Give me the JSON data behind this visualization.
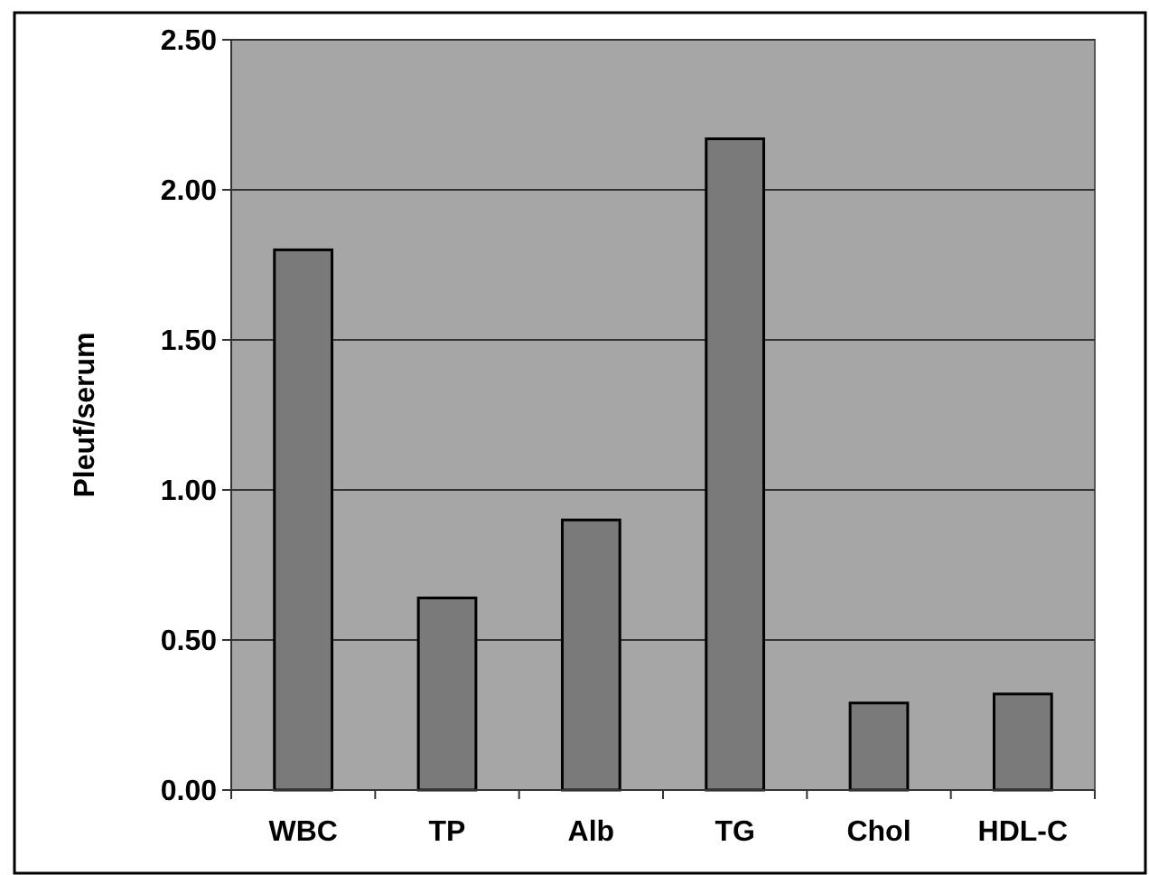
{
  "chart_data": {
    "type": "bar",
    "ylabel": "Pleuf/serum",
    "categories": [
      "WBC",
      "TP",
      "Alb",
      "TG",
      "Chol",
      "HDL-C"
    ],
    "values": [
      1.8,
      0.64,
      0.9,
      2.17,
      0.29,
      0.32
    ],
    "color": "#7a7a7a",
    "ylim": [
      0,
      2.5
    ],
    "yticks": [
      {
        "value": 0,
        "label": "0.00"
      },
      {
        "value": 0.5,
        "label": "0.50"
      },
      {
        "value": 1,
        "label": "1.00"
      },
      {
        "value": 1.5,
        "label": "1.50"
      },
      {
        "value": 2,
        "label": "2.00"
      },
      {
        "value": 2.5,
        "label": "2.50"
      }
    ],
    "grid": "y"
  }
}
